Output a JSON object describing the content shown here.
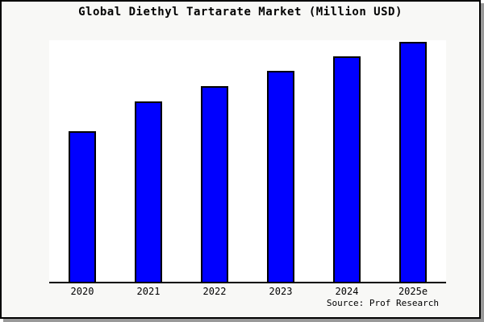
{
  "window": {
    "background": "#f8f8f6",
    "frame_border_color": "#000000",
    "frame_shadow_color": "#999999"
  },
  "chart": {
    "title": "Global Diethyl Tartarate Market (Million USD)",
    "source": "Source: Prof Research"
  },
  "chart_data": {
    "type": "bar",
    "title": "Global Diethyl Tartarate Market (Million USD)",
    "categories": [
      "2020",
      "2021",
      "2022",
      "2023",
      "2024",
      "2025e"
    ],
    "values": [
      62.1,
      74.4,
      80.7,
      87.0,
      93.0,
      99.0
    ],
    "value_note": "No y-axis or data labels shown in the image; values are estimated relative bar heights as a percentage of the plot height (2025e tallest).",
    "xlabel": "",
    "ylabel": "",
    "ylim": [
      0,
      100
    ],
    "grid": false,
    "legend": false,
    "axes_shown": [
      "bottom"
    ],
    "bar_color": "#0000ff",
    "bar_border_color": "#000000",
    "plot_background": "#ffffff",
    "annotations": [
      "Source: Prof Research"
    ]
  }
}
